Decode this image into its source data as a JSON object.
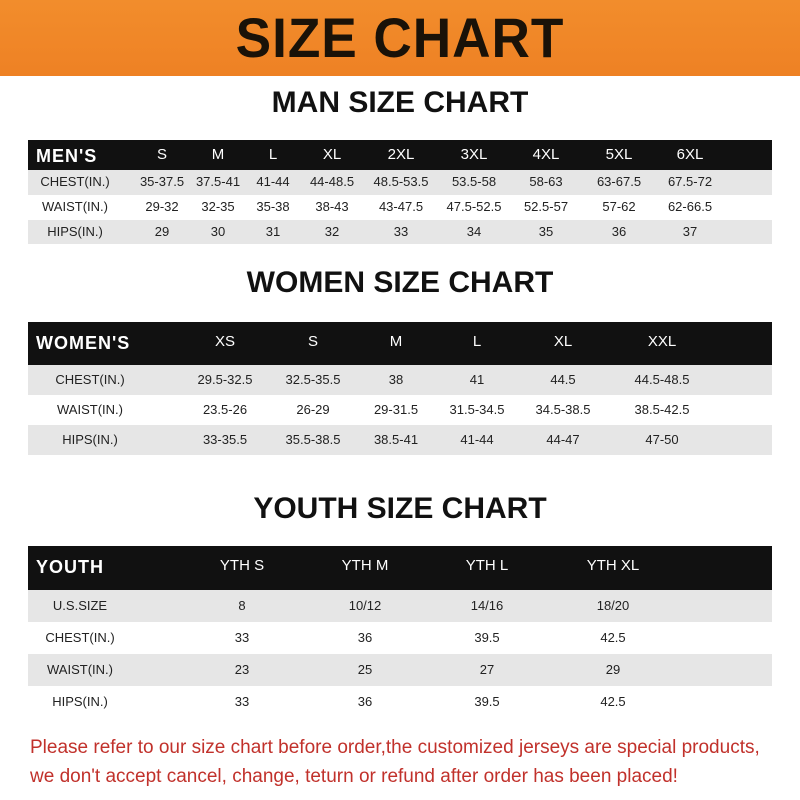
{
  "banner_title": "SIZE CHART",
  "men": {
    "title": "MAN SIZE CHART",
    "header": [
      "MEN'S",
      "S",
      "M",
      "L",
      "XL",
      "2XL",
      "3XL",
      "4XL",
      "5XL",
      "6XL"
    ],
    "rows": [
      [
        "CHEST(IN.)",
        "35-37.5",
        "37.5-41",
        "41-44",
        "44-48.5",
        "48.5-53.5",
        "53.5-58",
        "58-63",
        "63-67.5",
        "67.5-72"
      ],
      [
        "WAIST(IN.)",
        "29-32",
        "32-35",
        "35-38",
        "38-43",
        "43-47.5",
        "47.5-52.5",
        "52.5-57",
        "57-62",
        "62-66.5"
      ],
      [
        "HIPS(IN.)",
        "29",
        "30",
        "31",
        "32",
        "33",
        "34",
        "35",
        "36",
        "37"
      ]
    ]
  },
  "women": {
    "title": "WOMEN SIZE CHART",
    "header": [
      "WOMEN'S",
      "XS",
      "S",
      "M",
      "L",
      "XL",
      "XXL"
    ],
    "rows": [
      [
        "CHEST(IN.)",
        "29.5-32.5",
        "32.5-35.5",
        "38",
        "41",
        "44.5",
        "44.5-48.5"
      ],
      [
        "WAIST(IN.)",
        "23.5-26",
        "26-29",
        "29-31.5",
        "31.5-34.5",
        "34.5-38.5",
        "38.5-42.5"
      ],
      [
        "HIPS(IN.)",
        "33-35.5",
        "35.5-38.5",
        "38.5-41",
        "41-44",
        "44-47",
        "47-50"
      ]
    ]
  },
  "youth": {
    "title": "YOUTH SIZE CHART",
    "header": [
      "YOUTH",
      "YTH S",
      "YTH M",
      "YTH L",
      "YTH XL"
    ],
    "rows": [
      [
        "U.S.SIZE",
        "8",
        "10/12",
        "14/16",
        "18/20"
      ],
      [
        "CHEST(IN.)",
        "33",
        "36",
        "39.5",
        "42.5"
      ],
      [
        "WAIST(IN.)",
        "23",
        "25",
        "27",
        "29"
      ],
      [
        "HIPS(IN.)",
        "33",
        "36",
        "39.5",
        "42.5"
      ]
    ]
  },
  "notice": [
    "Please refer to our size chart before order,the customized jerseys are special products,",
    "we don't accept cancel, change, teturn or refund after order has been placed!"
  ]
}
